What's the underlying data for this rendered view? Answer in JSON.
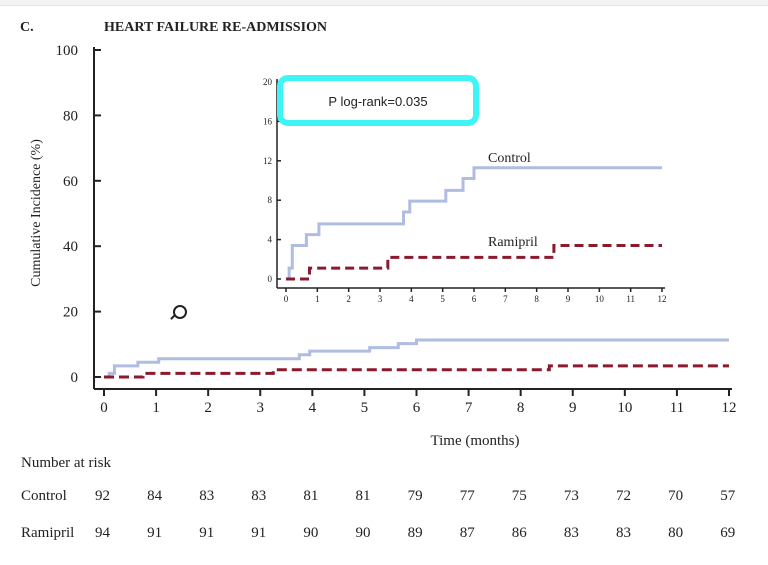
{
  "chart_data": {
    "type": "line",
    "panel_label": "C.",
    "title": "HEART FAILURE RE-ADMISSION",
    "xlabel": "Time (months)",
    "ylabel": "Cumulative Incidence (%)",
    "xlim": [
      0,
      12
    ],
    "ylim": [
      0,
      100
    ],
    "xticks": [
      "0",
      "1",
      "2",
      "3",
      "4",
      "5",
      "6",
      "7",
      "8",
      "9",
      "10",
      "11",
      "12"
    ],
    "yticks": [
      "0",
      "20",
      "40",
      "60",
      "80",
      "100"
    ],
    "series": [
      {
        "name": "Control",
        "color": "#aebde0",
        "style": "solid",
        "x": [
          0,
          0.1,
          0.2,
          0.65,
          1.05,
          3.75,
          3.95,
          5.1,
          5.65,
          6.0,
          12
        ],
        "y": [
          0,
          1.1,
          3.4,
          4.5,
          5.6,
          6.8,
          7.9,
          9.0,
          10.2,
          11.3,
          11.3
        ]
      },
      {
        "name": "Ramipril",
        "color": "#8b1a2e",
        "style": "dashed",
        "x": [
          0,
          0.75,
          3.25,
          8.55,
          12
        ],
        "y": [
          0,
          1.1,
          2.2,
          3.4,
          3.4
        ]
      }
    ],
    "inset": {
      "ylim": [
        0,
        20
      ],
      "xlim": [
        0,
        12
      ],
      "yticks": [
        "0",
        "4",
        "8",
        "12",
        "16",
        "20"
      ],
      "xticks": [
        "0",
        "1",
        "2",
        "3",
        "4",
        "5",
        "6",
        "7",
        "8",
        "9",
        "10",
        "11",
        "12"
      ],
      "annotation": "P log-rank=0.035",
      "annotation_border_color": "#3ef4f4",
      "labels": {
        "control": "Control",
        "ramipril": "Ramipril"
      }
    },
    "risk_table": {
      "title": "Number at risk",
      "rows": [
        {
          "name": "Control",
          "values": [
            "92",
            "84",
            "83",
            "83",
            "81",
            "81",
            "79",
            "77",
            "75",
            "73",
            "72",
            "70",
            "57"
          ]
        },
        {
          "name": "Ramipril",
          "values": [
            "94",
            "91",
            "91",
            "91",
            "90",
            "90",
            "89",
            "87",
            "86",
            "83",
            "83",
            "80",
            "69"
          ]
        }
      ]
    }
  }
}
